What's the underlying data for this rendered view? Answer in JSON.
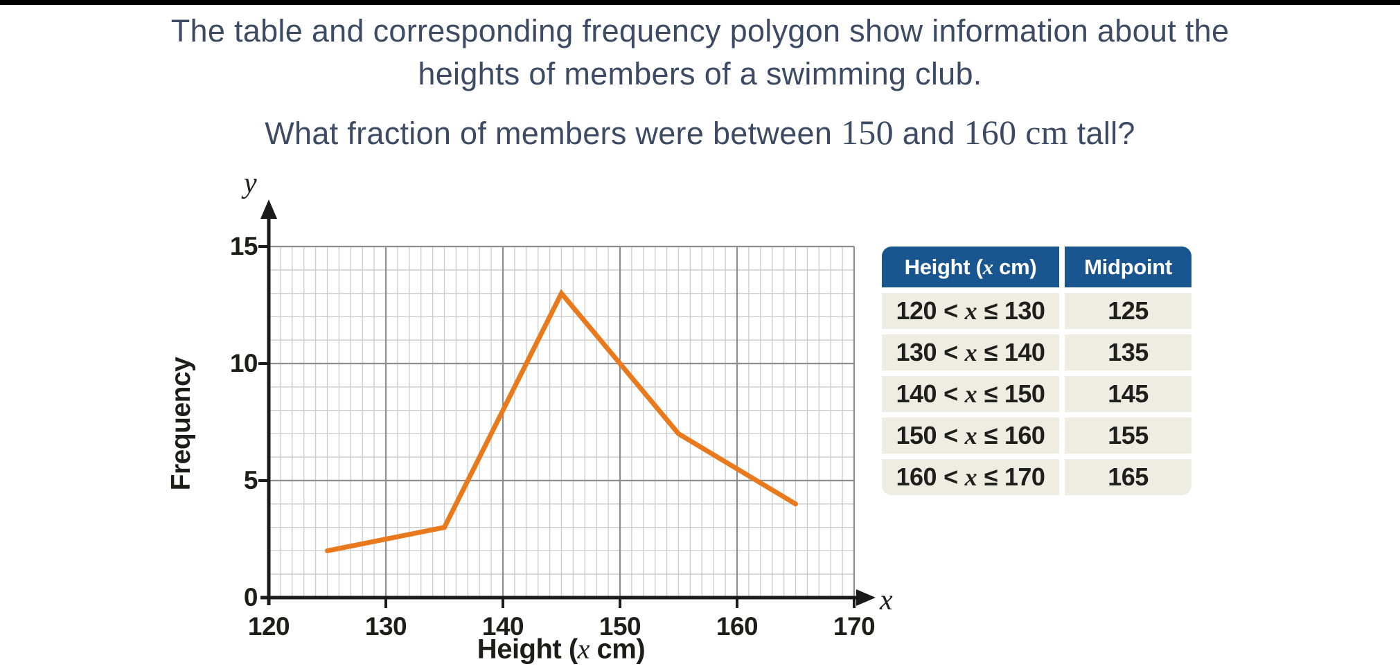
{
  "question": {
    "line1": "The table and corresponding frequency polygon show information about the",
    "line2": "heights of members of a swimming club.",
    "line3_pre": "What fraction of members were between ",
    "line3_num1": "150",
    "line3_mid": " and ",
    "line3_num2": "160 cm",
    "line3_post": " tall?"
  },
  "chart_data": {
    "type": "line",
    "title": "",
    "x": [
      125,
      135,
      145,
      155,
      165
    ],
    "frequencies": [
      2,
      3,
      13,
      7,
      4
    ],
    "x_ticks": [
      "120",
      "130",
      "140",
      "150",
      "160",
      "170"
    ],
    "y_ticks": [
      "0",
      "5",
      "10",
      "15"
    ],
    "xlim": [
      120,
      170
    ],
    "ylim": [
      0,
      15
    ],
    "grid": {
      "minor_step": 1,
      "major_step_x": 10,
      "major_step_y": 5,
      "minor_on": true
    },
    "legend": "none",
    "y_axis_title": "Frequency",
    "x_axis_title_pre": "Height (",
    "x_axis_title_var": "x",
    "x_axis_title_post": " cm)",
    "x_axis_letter": "x",
    "y_axis_letter": "y",
    "line_color": "#e8791d"
  },
  "table": {
    "header_pre": "Height (",
    "header_var": "x",
    "header_post": " cm)",
    "header_midpoint": "Midpoint",
    "rows": [
      {
        "lo": "120",
        "lt": "<",
        "var": "x",
        "le": "≤",
        "hi": "130",
        "midpoint": "125"
      },
      {
        "lo": "130",
        "lt": "<",
        "var": "x",
        "le": "≤",
        "hi": "140",
        "midpoint": "135"
      },
      {
        "lo": "140",
        "lt": "<",
        "var": "x",
        "le": "≤",
        "hi": "150",
        "midpoint": "145"
      },
      {
        "lo": "150",
        "lt": "<",
        "var": "x",
        "le": "≤",
        "hi": "160",
        "midpoint": "155"
      },
      {
        "lo": "160",
        "lt": "<",
        "var": "x",
        "le": "≤",
        "hi": "170",
        "midpoint": "165"
      }
    ]
  },
  "colors": {
    "title_text": "#3c4a63",
    "line": "#e8791d",
    "table_header_bg": "#19568f",
    "table_row_bg": "#efece2",
    "grid_minor": "#cbcbcb",
    "grid_major": "#8d8d8d",
    "axis": "#1b1b1b",
    "top_bar": "#000000"
  }
}
